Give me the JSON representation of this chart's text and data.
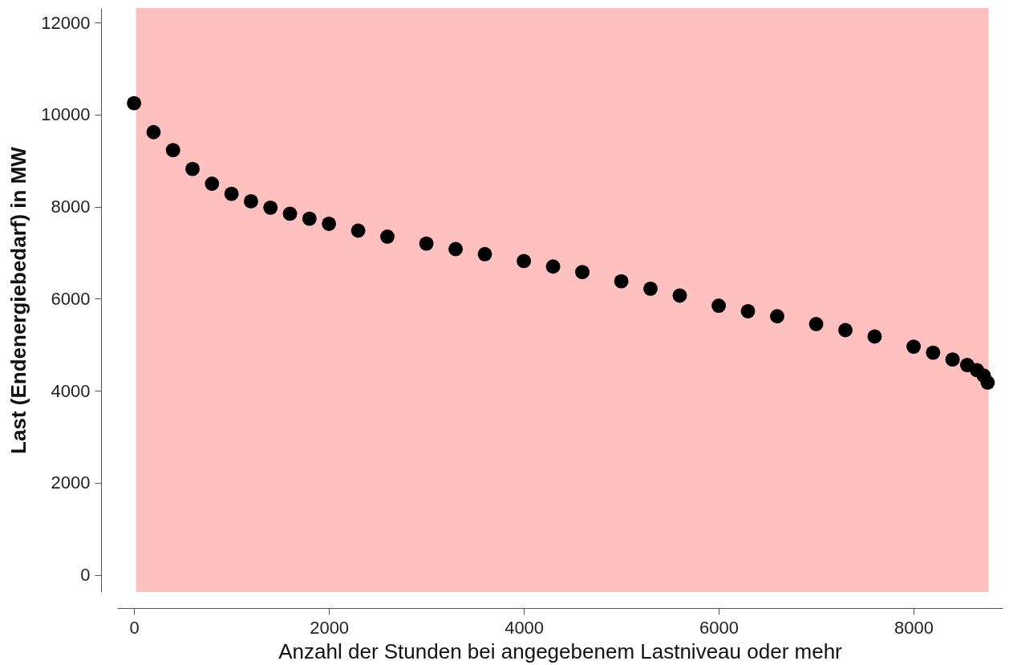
{
  "chart_data": {
    "type": "scatter",
    "xlabel": "Anzahl der Stunden bei angegebenem Lastniveau oder mehr",
    "ylabel": "Last (Endenergiebedarf) in MW",
    "x": [
      0,
      200,
      400,
      600,
      800,
      1000,
      1200,
      1400,
      1600,
      1800,
      2000,
      2300,
      2600,
      3000,
      3300,
      3600,
      4000,
      4300,
      4600,
      5000,
      5300,
      5600,
      6000,
      6300,
      6600,
      7000,
      7300,
      7600,
      8000,
      8200,
      8400,
      8550,
      8650,
      8720,
      8760
    ],
    "series": [
      {
        "color": "#000000",
        "values": [
          10250,
          9620,
          9230,
          8820,
          8500,
          8280,
          8120,
          7980,
          7850,
          7740,
          7630,
          7480,
          7350,
          7200,
          7080,
          6970,
          6820,
          6700,
          6580,
          6380,
          6220,
          6070,
          5850,
          5730,
          5620,
          5450,
          5320,
          5180,
          4960,
          4830,
          4680,
          4560,
          4450,
          4330,
          4180
        ]
      }
    ],
    "xlim": [
      -174,
      8913
    ],
    "ylim": [
      -372,
      12318
    ],
    "xticks": [
      0,
      2000,
      4000,
      6000,
      8000
    ],
    "yticks": [
      0,
      2000,
      4000,
      6000,
      8000,
      10000,
      12000
    ],
    "bands": [
      {
        "axis": "x",
        "from": 20,
        "to": 8770,
        "color": "#ffc0c0"
      }
    ],
    "grid": false
  }
}
